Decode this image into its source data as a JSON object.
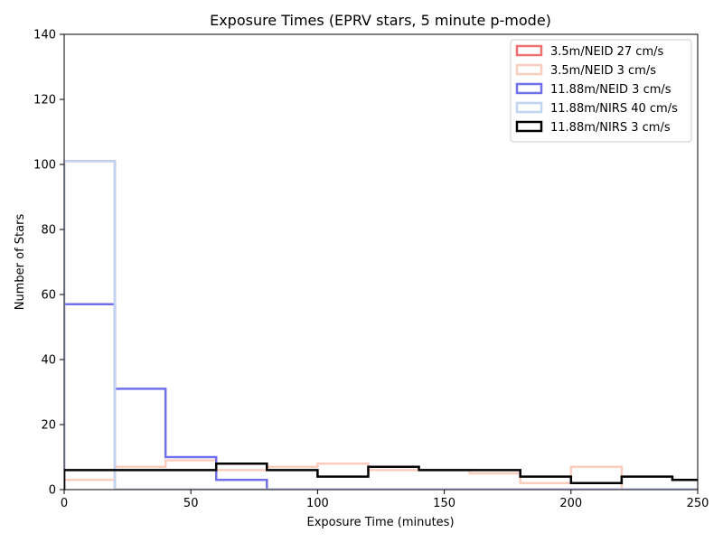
{
  "chart_data": {
    "type": "histogram-step",
    "title": "Exposure Times (EPRV stars, 5 minute p-mode)",
    "xlabel": "Exposure Time (minutes)",
    "ylabel": "Number of Stars",
    "xlim": [
      0,
      250
    ],
    "ylim": [
      0,
      140
    ],
    "xticks": [
      0,
      50,
      100,
      150,
      200,
      250
    ],
    "yticks": [
      0,
      20,
      40,
      60,
      80,
      100,
      120,
      140
    ],
    "grid": false,
    "legend_position": "top-right",
    "bin_edges": [
      0,
      20,
      40,
      60,
      80,
      100,
      120,
      140,
      160,
      180,
      200,
      220,
      240,
      260
    ],
    "series": [
      {
        "name": "3.5m/NEID 27 cm/s",
        "color": "#f07070",
        "values": [
          101,
          0,
          0,
          0,
          0,
          0,
          0,
          0,
          0,
          0,
          0,
          0,
          0
        ]
      },
      {
        "name": "3.5m/NEID 3 cm/s",
        "color": "#fbcdbd",
        "values": [
          3,
          7,
          9,
          6,
          7,
          8,
          6,
          6,
          5,
          2,
          7,
          0,
          0
        ]
      },
      {
        "name": "11.88m/NEID 3 cm/s",
        "color": "#7070ec",
        "values": [
          57,
          31,
          10,
          3,
          0,
          0,
          0,
          0,
          0,
          0,
          0,
          0,
          0
        ]
      },
      {
        "name": "11.88m/NIRS 40 cm/s",
        "color": "#c0d4f4",
        "values": [
          101,
          0,
          0,
          0,
          0,
          0,
          0,
          0,
          0,
          0,
          0,
          0,
          0
        ]
      },
      {
        "name": "11.88m/NIRS 3 cm/s",
        "color": "#000000",
        "values": [
          6,
          6,
          6,
          8,
          6,
          4,
          7,
          6,
          6,
          4,
          2,
          4,
          3
        ]
      }
    ]
  }
}
